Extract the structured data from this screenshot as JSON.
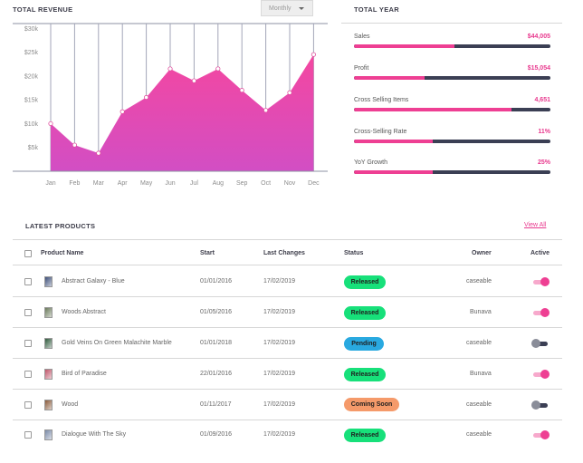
{
  "revenue": {
    "title": "TOTAL REVENUE",
    "period_select": "Monthly"
  },
  "chart_data": {
    "type": "area",
    "title": "TOTAL REVENUE",
    "xlabel": "",
    "ylabel": "",
    "categories": [
      "Jan",
      "Feb",
      "Mar",
      "Apr",
      "May",
      "Jun",
      "Jul",
      "Aug",
      "Sep",
      "Oct",
      "Nov",
      "Dec"
    ],
    "values": [
      10000,
      5500,
      3800,
      12500,
      15500,
      21500,
      19000,
      21500,
      17000,
      12800,
      16500,
      24500
    ],
    "y_ticks": [
      0,
      5000,
      10000,
      15000,
      20000,
      25000,
      30000
    ],
    "y_tick_labels": [
      "",
      "$5k",
      "$10k",
      "$15k",
      "$20k",
      "$25k",
      "$30k"
    ],
    "ylim": [
      0,
      31000
    ],
    "grid": "vertical",
    "colors": {
      "fill_top": "#f447a0",
      "fill_bottom": "#d24ec4",
      "marker": "#ffffff",
      "gridline": "#a3a6b8"
    }
  },
  "total_year": {
    "title": "TOTAL YEAR",
    "items": [
      {
        "label": "Sales",
        "value": "$44,005",
        "progress": 0.51
      },
      {
        "label": "Profit",
        "value": "$15,054",
        "progress": 0.36
      },
      {
        "label": "Cross Selling Items",
        "value": "4,651",
        "progress": 0.8
      },
      {
        "label": "Cross-Selling Rate",
        "value": "11%",
        "progress": 0.4
      },
      {
        "label": "YoY Growth",
        "value": "25%",
        "progress": 0.4
      }
    ]
  },
  "products": {
    "title": "LATEST PRODUCTS",
    "view_all": "View All",
    "columns": {
      "name": "Product Name",
      "start": "Start",
      "last_changes": "Last Changes",
      "status": "Status",
      "owner": "Owner",
      "active": "Active"
    },
    "rows": [
      {
        "name": "Abstract Galaxy - Blue",
        "start": "01/01/2016",
        "last_changes": "17/02/2019",
        "status": "Released",
        "owner": "caseable",
        "active": true
      },
      {
        "name": "Woods Abstract",
        "start": "01/05/2016",
        "last_changes": "17/02/2019",
        "status": "Released",
        "owner": "Bunava",
        "active": true
      },
      {
        "name": "Gold Veins On Green Malachite Marble",
        "start": "01/01/2018",
        "last_changes": "17/02/2019",
        "status": "Pending",
        "owner": "caseable",
        "active": false
      },
      {
        "name": "Bird of Paradise",
        "start": "22/01/2016",
        "last_changes": "17/02/2019",
        "status": "Released",
        "owner": "Bunava",
        "active": true
      },
      {
        "name": "Wood",
        "start": "01/11/2017",
        "last_changes": "17/02/2019",
        "status": "Coming Soon",
        "owner": "caseable",
        "active": false
      },
      {
        "name": "Dialogue With The Sky",
        "start": "01/09/2016",
        "last_changes": "17/02/2019",
        "status": "Released",
        "owner": "caseable",
        "active": true
      }
    ],
    "status_colors": {
      "Released": "#17e07a",
      "Pending": "#29a9e0",
      "Coming Soon": "#f59a6a"
    },
    "thumb_colors": [
      "#3d4f7a",
      "#6a7a5a",
      "#2f5a3d",
      "#c0556a",
      "#8a5a3a",
      "#7a8aa8"
    ]
  }
}
